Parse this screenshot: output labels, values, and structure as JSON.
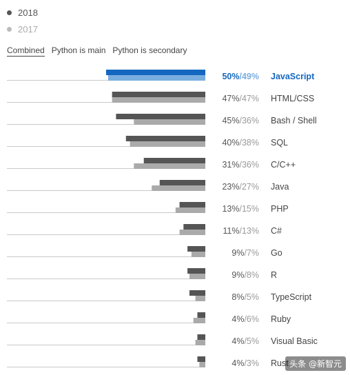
{
  "legend": {
    "items": [
      {
        "label": "2018",
        "color": "#555555"
      },
      {
        "label": "2017",
        "color": "#aaaaaa"
      }
    ]
  },
  "tabs": [
    "Combined",
    "Python is main",
    "Python is secondary"
  ],
  "active_tab": 0,
  "highlight_colors": {
    "dark": "#1467c0",
    "light": "#7aaedf"
  },
  "watermark": "头条 @新智元",
  "chart_data": {
    "type": "bar",
    "orientation": "horizontal",
    "categories": [
      "JavaScript",
      "HTML/CSS",
      "Bash / Shell",
      "SQL",
      "C/C++",
      "Java",
      "PHP",
      "C#",
      "Go",
      "R",
      "TypeScript",
      "Ruby",
      "Visual Basic",
      "Rust"
    ],
    "series": [
      {
        "name": "2018",
        "color": "#555555",
        "values": [
          50,
          47,
          45,
          40,
          31,
          23,
          13,
          11,
          9,
          9,
          8,
          4,
          4,
          4
        ]
      },
      {
        "name": "2017",
        "color": "#aaaaaa",
        "values": [
          49,
          47,
          36,
          38,
          36,
          27,
          15,
          13,
          7,
          8,
          5,
          6,
          5,
          3
        ]
      }
    ],
    "value_labels": [
      "50%/49%",
      "47%/47%",
      "45%/36%",
      "40%/38%",
      "31%/36%",
      "23%/27%",
      "13%/15%",
      "11%/13%",
      "9%/7%",
      "9%/8%",
      "8%/5%",
      "4%/6%",
      "4%/5%",
      "4%/3%"
    ],
    "highlight": "JavaScript",
    "xlim": [
      0,
      50
    ]
  }
}
